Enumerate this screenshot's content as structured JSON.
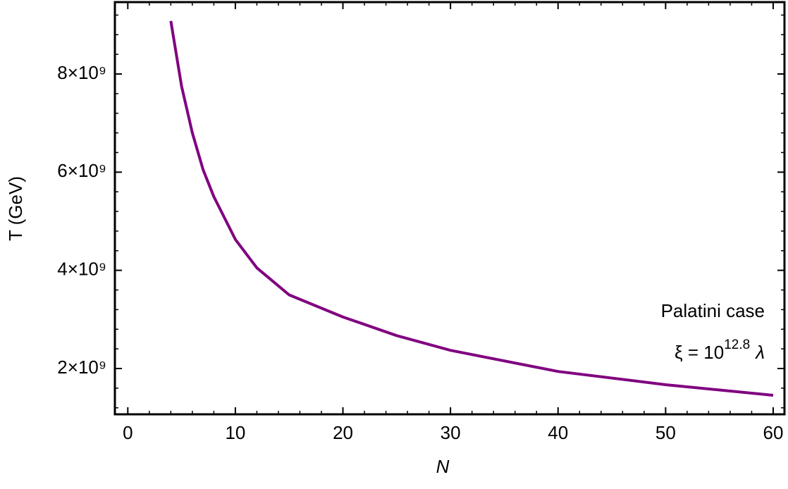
{
  "chart_data": {
    "type": "line",
    "x_label": "N",
    "y_label": "T (GeV)",
    "annotation": "Palatini case",
    "annotation_formula": {
      "base": "ξ = 10",
      "sup": "12.8",
      "tail": "λ"
    },
    "x": [
      4,
      5,
      6,
      7,
      8,
      10,
      12,
      15,
      20,
      25,
      30,
      40,
      50,
      60
    ],
    "series": [
      {
        "color": "#800080",
        "values": [
          9080000000,
          7750000000,
          6800000000,
          6050000000,
          5500000000,
          4630000000,
          4050000000,
          3500000000,
          3050000000,
          2670000000,
          2370000000,
          1940000000,
          1670000000,
          1455000000
        ]
      }
    ],
    "xlim": [
      -1.2,
      61.05
    ],
    "ylim": [
      1067000000,
      9464000000
    ],
    "xticks": [
      0,
      10,
      20,
      30,
      40,
      50,
      60
    ],
    "yticks": [
      {
        "value": 2000000000,
        "label": "2×10⁹"
      },
      {
        "value": 4000000000,
        "label": "4×10⁹"
      },
      {
        "value": 6000000000,
        "label": "6×10⁹"
      },
      {
        "value": 8000000000,
        "label": "8×10⁹"
      }
    ]
  }
}
